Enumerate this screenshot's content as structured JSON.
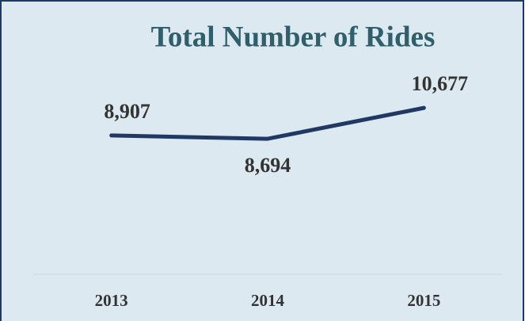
{
  "chart_data": {
    "type": "line",
    "title": "Total Number of Rides",
    "categories": [
      "2013",
      "2014",
      "2015"
    ],
    "series": [
      {
        "name": null,
        "color": "#1f3864",
        "values": [
          8907,
          8694,
          10677
        ],
        "value_labels": [
          "8,907",
          "8,694",
          "10,677"
        ]
      }
    ],
    "ylim": [
      0,
      17500
    ],
    "grid": false
  }
}
